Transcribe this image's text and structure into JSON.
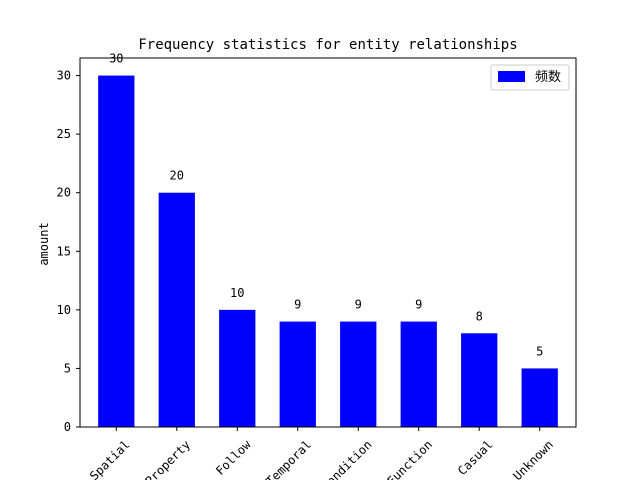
{
  "chart_data": {
    "type": "bar",
    "title": "Frequency statistics for entity relationships",
    "xlabel": "",
    "ylabel": "amount",
    "categories": [
      "Spatial",
      "Property",
      "Follow",
      "Temporal",
      "Condition",
      "Function",
      "Casual",
      "Unknown"
    ],
    "series": [
      {
        "name": "频数",
        "values": [
          30,
          20,
          10,
          9,
          9,
          9,
          8,
          5
        ],
        "color": "#0000ff"
      }
    ],
    "ylim": [
      0,
      31.5
    ],
    "yticks": [
      0,
      5,
      10,
      15,
      20,
      25,
      30
    ],
    "legend_position": "top-right",
    "grid": false,
    "data_labels": true
  }
}
